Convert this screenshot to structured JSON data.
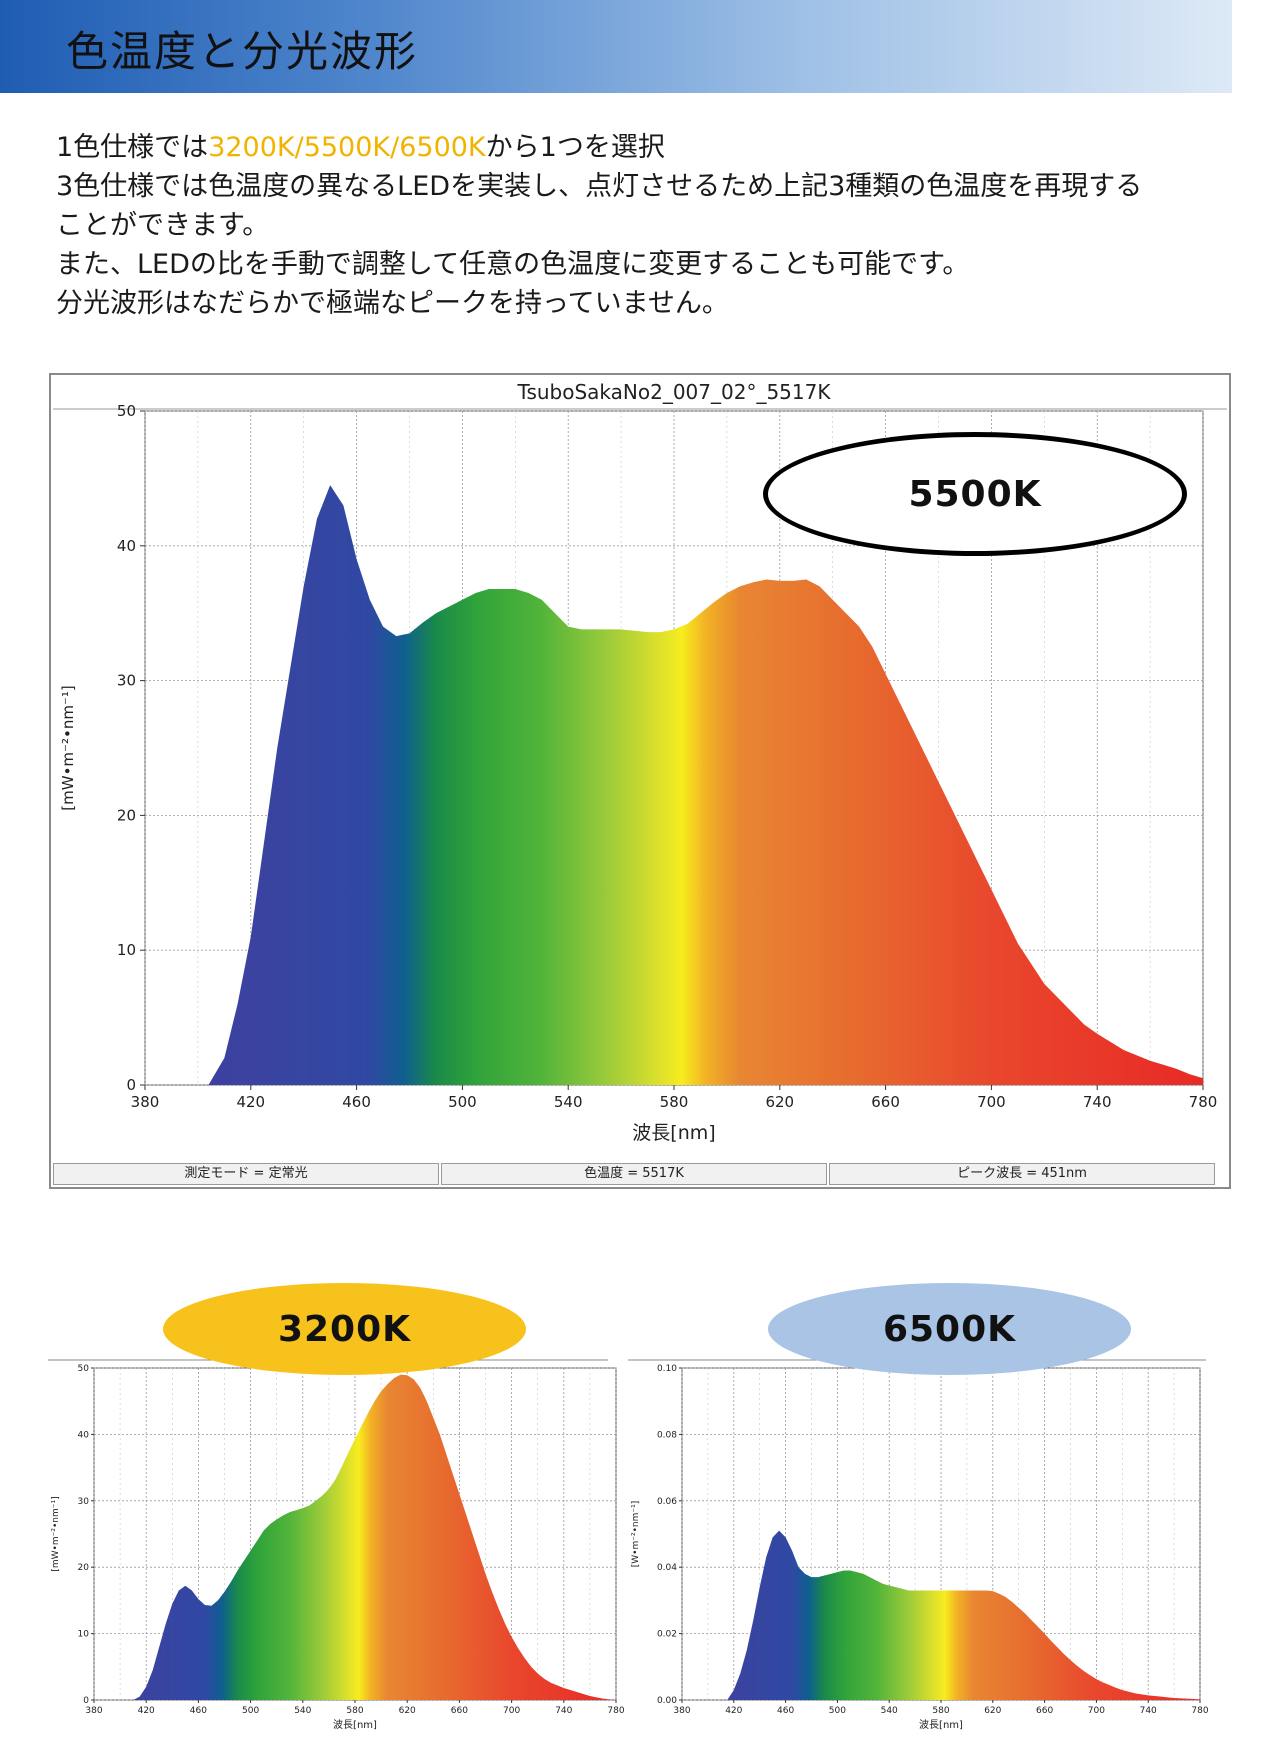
{
  "header": {
    "title": "色温度と分光波形"
  },
  "intro": {
    "line1_pre": "1色仕様では",
    "line1_highlight": "3200K/5500K/6500K",
    "line1_post": "から1つを選択",
    "line2": "3色仕様では色温度の異なるLEDを実装し、点灯させるため上記3種類の色温度を再現する",
    "line3": "ことができます。",
    "line4": "また、LEDの比を手動で調整して任意の色温度に変更することも可能です。",
    "line5": "分光波形はなだらかで極端なピークを持っていません。",
    "highlight_color": "#f0b400"
  },
  "badges": {
    "main": "5500K",
    "left": "3200K",
    "right": "6500K",
    "left_color": "#f7c21b",
    "right_color": "#a9c4e4"
  },
  "status_bar": {
    "mode": "測定モード = 定常光",
    "cct": "色温度 = 5517K",
    "peak": "ピーク波長 = 451nm"
  },
  "chart_data": [
    {
      "type": "area",
      "title": "TsuboSakaNo2_007_02°_5517K",
      "xlabel": "波長[nm]",
      "ylabel": "[mW•m⁻²•nm⁻¹]",
      "xlim": [
        380,
        780
      ],
      "ylim": [
        0,
        50
      ],
      "xticks": [
        380,
        420,
        460,
        500,
        540,
        580,
        620,
        660,
        700,
        740,
        780
      ],
      "yticks": [
        0,
        10,
        20,
        30,
        40,
        50
      ],
      "grid": true,
      "x": [
        404,
        410,
        415,
        420,
        425,
        430,
        435,
        440,
        445,
        450,
        455,
        460,
        465,
        470,
        475,
        480,
        485,
        490,
        495,
        500,
        505,
        510,
        515,
        520,
        525,
        530,
        535,
        540,
        545,
        550,
        555,
        560,
        565,
        570,
        575,
        580,
        585,
        590,
        595,
        600,
        605,
        610,
        615,
        620,
        625,
        630,
        635,
        640,
        645,
        650,
        655,
        660,
        665,
        670,
        675,
        680,
        685,
        690,
        695,
        700,
        705,
        710,
        715,
        720,
        725,
        730,
        735,
        740,
        745,
        750,
        755,
        760,
        765,
        770,
        775,
        780
      ],
      "y": [
        0,
        2,
        6,
        11,
        18,
        25,
        31,
        37,
        42,
        44.5,
        43,
        39,
        36,
        34,
        33.3,
        33.5,
        34.3,
        35,
        35.5,
        36,
        36.5,
        36.8,
        36.8,
        36.8,
        36.5,
        36,
        35,
        34,
        33.8,
        33.8,
        33.8,
        33.8,
        33.7,
        33.6,
        33.6,
        33.8,
        34.2,
        35,
        35.8,
        36.5,
        37,
        37.3,
        37.5,
        37.4,
        37.4,
        37.5,
        37,
        36,
        35,
        34,
        32.5,
        30.5,
        28.5,
        26.5,
        24.5,
        22.5,
        20.5,
        18.5,
        16.5,
        14.5,
        12.5,
        10.5,
        9,
        7.5,
        6.5,
        5.5,
        4.5,
        3.8,
        3.2,
        2.6,
        2.2,
        1.8,
        1.5,
        1.2,
        0.8,
        0.5
      ]
    },
    {
      "type": "area",
      "title": "",
      "xlabel": "波長[nm]",
      "ylabel": "[mW•m⁻²•nm⁻¹]",
      "xlim": [
        380,
        780
      ],
      "ylim": [
        0,
        50
      ],
      "xticks": [
        380,
        420,
        460,
        500,
        540,
        580,
        620,
        660,
        700,
        740,
        780
      ],
      "yticks": [
        0,
        10,
        20,
        30,
        40,
        50
      ],
      "grid": true,
      "x": [
        410,
        415,
        420,
        425,
        430,
        435,
        440,
        445,
        450,
        455,
        460,
        465,
        470,
        475,
        480,
        485,
        490,
        495,
        500,
        505,
        510,
        515,
        520,
        525,
        530,
        535,
        540,
        545,
        550,
        555,
        560,
        565,
        570,
        575,
        580,
        585,
        590,
        595,
        600,
        605,
        610,
        615,
        620,
        625,
        630,
        635,
        640,
        645,
        650,
        655,
        660,
        665,
        670,
        675,
        680,
        685,
        690,
        695,
        700,
        705,
        710,
        715,
        720,
        725,
        730,
        735,
        740,
        745,
        750,
        755,
        760,
        765,
        770,
        775,
        780
      ],
      "y": [
        0,
        0.5,
        2,
        4.5,
        8,
        11.5,
        14.5,
        16.5,
        17.2,
        16.5,
        15.2,
        14.3,
        14.2,
        15,
        16.3,
        17.8,
        19.5,
        21,
        22.5,
        24,
        25.5,
        26.5,
        27.2,
        27.8,
        28.3,
        28.6,
        28.9,
        29.3,
        30,
        30.8,
        31.8,
        33.2,
        35.2,
        37.3,
        39.3,
        41.3,
        43.2,
        45,
        46.5,
        47.6,
        48.5,
        49,
        48.9,
        48.3,
        47,
        45,
        42.5,
        40,
        37,
        34,
        31,
        28,
        25,
        22,
        19,
        16.3,
        13.8,
        11.5,
        9.5,
        7.8,
        6.3,
        5,
        4,
        3.2,
        2.6,
        2.2,
        1.8,
        1.5,
        1.2,
        0.9,
        0.6,
        0.4,
        0.2,
        0.1,
        0
      ]
    },
    {
      "type": "area",
      "title": "",
      "xlabel": "波長[nm]",
      "ylabel": "[W•m⁻²•nm⁻¹]",
      "xlim": [
        380,
        780
      ],
      "ylim": [
        0,
        0.1
      ],
      "xticks": [
        380,
        420,
        460,
        500,
        540,
        580,
        620,
        660,
        700,
        740,
        780
      ],
      "yticks": [
        0,
        0.02,
        0.04,
        0.06,
        0.08,
        0.1
      ],
      "grid": true,
      "x": [
        415,
        420,
        425,
        430,
        435,
        440,
        445,
        450,
        455,
        460,
        465,
        470,
        475,
        480,
        485,
        490,
        495,
        500,
        505,
        510,
        515,
        520,
        525,
        530,
        535,
        540,
        545,
        550,
        555,
        560,
        565,
        570,
        575,
        580,
        585,
        590,
        595,
        600,
        605,
        610,
        615,
        620,
        625,
        630,
        635,
        640,
        645,
        650,
        655,
        660,
        665,
        670,
        675,
        680,
        685,
        690,
        695,
        700,
        705,
        710,
        715,
        720,
        725,
        730,
        735,
        740,
        745,
        750,
        755,
        760,
        765,
        770,
        775,
        780
      ],
      "y": [
        0,
        0.003,
        0.008,
        0.015,
        0.024,
        0.034,
        0.043,
        0.049,
        0.051,
        0.049,
        0.045,
        0.04,
        0.038,
        0.037,
        0.037,
        0.0375,
        0.038,
        0.0385,
        0.039,
        0.039,
        0.0385,
        0.038,
        0.037,
        0.036,
        0.035,
        0.0345,
        0.034,
        0.0335,
        0.033,
        0.033,
        0.033,
        0.033,
        0.033,
        0.033,
        0.033,
        0.033,
        0.033,
        0.033,
        0.033,
        0.033,
        0.033,
        0.0328,
        0.032,
        0.031,
        0.0295,
        0.0278,
        0.026,
        0.024,
        0.022,
        0.02,
        0.0178,
        0.0158,
        0.0138,
        0.012,
        0.0103,
        0.0088,
        0.0075,
        0.0063,
        0.0053,
        0.0045,
        0.0037,
        0.003,
        0.0025,
        0.002,
        0.0017,
        0.0014,
        0.0012,
        0.001,
        0.0008,
        0.0006,
        0.0005,
        0.0004,
        0.0003,
        0.0002
      ]
    }
  ]
}
